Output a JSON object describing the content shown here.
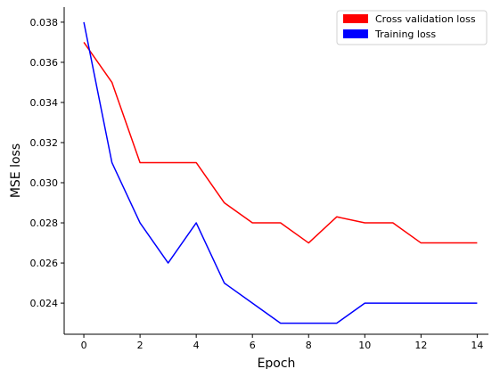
{
  "chart_data": {
    "type": "line",
    "xlabel": "Epoch",
    "ylabel": "MSE loss",
    "xlim": [
      -0.7,
      14.4
    ],
    "ylim": [
      0.02245,
      0.03875
    ],
    "x_ticks": [
      0,
      2,
      4,
      6,
      8,
      10,
      12,
      14
    ],
    "y_ticks": [
      0.024,
      0.026,
      0.028,
      0.03,
      0.032,
      0.034,
      0.036,
      0.038
    ],
    "y_tick_labels": [
      "0.024",
      "0.026",
      "0.028",
      "0.030",
      "0.032",
      "0.034",
      "0.036",
      "0.038"
    ],
    "grid": false,
    "legend_position": "top-right",
    "x": [
      0,
      1,
      2,
      3,
      4,
      5,
      6,
      7,
      8,
      9,
      10,
      11,
      12,
      13,
      14
    ],
    "series": [
      {
        "name": "Cross validation loss",
        "color": "#ff0000",
        "values": [
          0.037,
          0.035,
          0.031,
          0.031,
          0.031,
          0.029,
          0.028,
          0.028,
          0.027,
          0.0283,
          0.028,
          0.028,
          0.027,
          0.027,
          0.027
        ]
      },
      {
        "name": "Training loss",
        "color": "#0000ff",
        "values": [
          0.038,
          0.031,
          0.028,
          0.026,
          0.028,
          0.025,
          0.024,
          0.023,
          0.023,
          0.023,
          0.024,
          0.024,
          0.024,
          0.024,
          0.024
        ]
      }
    ]
  }
}
